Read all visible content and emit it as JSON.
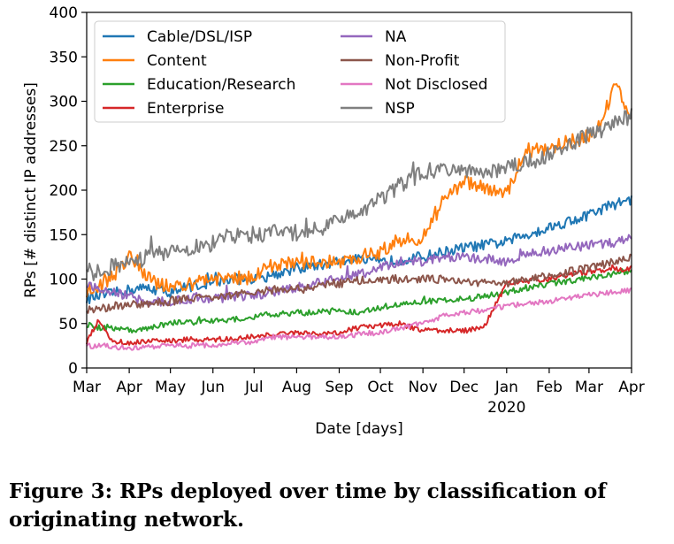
{
  "caption": "Figure 3: RPs deployed over time by classification of originating network.",
  "chart_data": {
    "type": "line",
    "xlabel": "Date [days]",
    "ylabel": "RPs [# distinct IP addresses]",
    "x_range": [
      "2019-03-01",
      "2020-04-01"
    ],
    "ylim": [
      0,
      400
    ],
    "y_ticks": [
      0,
      50,
      100,
      150,
      200,
      250,
      300,
      350,
      400
    ],
    "x_ticks": [
      {
        "date": "2019-03-01",
        "label": "Mar"
      },
      {
        "date": "2019-04-01",
        "label": "Apr"
      },
      {
        "date": "2019-05-01",
        "label": "May"
      },
      {
        "date": "2019-06-01",
        "label": "Jun"
      },
      {
        "date": "2019-07-01",
        "label": "Jul"
      },
      {
        "date": "2019-08-01",
        "label": "Aug"
      },
      {
        "date": "2019-09-01",
        "label": "Sep"
      },
      {
        "date": "2019-10-01",
        "label": "Oct"
      },
      {
        "date": "2019-11-01",
        "label": "Nov"
      },
      {
        "date": "2019-12-01",
        "label": "Dec"
      },
      {
        "date": "2020-01-01",
        "label": "Jan",
        "sublabel": "2020"
      },
      {
        "date": "2020-02-01",
        "label": "Feb"
      },
      {
        "date": "2020-03-01",
        "label": "Mar"
      },
      {
        "date": "2020-04-01",
        "label": "Apr"
      }
    ],
    "grid": false,
    "legend": {
      "position": "top-left",
      "columns": 2
    },
    "series": [
      {
        "name": "Cable/DSL/ISP",
        "color": "#1f77b4",
        "points": [
          [
            "2019-03-01",
            78
          ],
          [
            "2019-03-15",
            82
          ],
          [
            "2019-04-01",
            88
          ],
          [
            "2019-04-15",
            90
          ],
          [
            "2019-05-01",
            85
          ],
          [
            "2019-05-15",
            92
          ],
          [
            "2019-06-01",
            95
          ],
          [
            "2019-06-15",
            100
          ],
          [
            "2019-07-01",
            100
          ],
          [
            "2019-07-15",
            105
          ],
          [
            "2019-08-01",
            112
          ],
          [
            "2019-08-15",
            115
          ],
          [
            "2019-09-01",
            120
          ],
          [
            "2019-09-15",
            122
          ],
          [
            "2019-10-01",
            118
          ],
          [
            "2019-10-15",
            122
          ],
          [
            "2019-11-01",
            125
          ],
          [
            "2019-11-15",
            130
          ],
          [
            "2019-12-01",
            135
          ],
          [
            "2019-12-15",
            138
          ],
          [
            "2020-01-01",
            142
          ],
          [
            "2020-01-15",
            150
          ],
          [
            "2020-02-01",
            158
          ],
          [
            "2020-02-15",
            165
          ],
          [
            "2020-03-01",
            172
          ],
          [
            "2020-03-15",
            182
          ],
          [
            "2020-04-01",
            190
          ]
        ]
      },
      {
        "name": "Content",
        "color": "#ff7f0e",
        "points": [
          [
            "2019-03-01",
            85
          ],
          [
            "2019-03-15",
            95
          ],
          [
            "2019-04-01",
            125
          ],
          [
            "2019-04-15",
            100
          ],
          [
            "2019-05-01",
            90
          ],
          [
            "2019-05-15",
            95
          ],
          [
            "2019-06-01",
            100
          ],
          [
            "2019-06-15",
            100
          ],
          [
            "2019-07-01",
            105
          ],
          [
            "2019-07-15",
            115
          ],
          [
            "2019-08-01",
            120
          ],
          [
            "2019-08-15",
            118
          ],
          [
            "2019-09-01",
            120
          ],
          [
            "2019-09-15",
            125
          ],
          [
            "2019-10-01",
            130
          ],
          [
            "2019-10-15",
            145
          ],
          [
            "2019-11-01",
            145
          ],
          [
            "2019-11-15",
            185
          ],
          [
            "2019-12-01",
            210
          ],
          [
            "2019-12-15",
            205
          ],
          [
            "2020-01-01",
            195
          ],
          [
            "2020-01-15",
            245
          ],
          [
            "2020-02-01",
            245
          ],
          [
            "2020-02-15",
            255
          ],
          [
            "2020-03-01",
            260
          ],
          [
            "2020-03-10",
            275
          ],
          [
            "2020-03-20",
            320
          ],
          [
            "2020-04-01",
            285
          ]
        ]
      },
      {
        "name": "Education/Research",
        "color": "#2ca02c",
        "points": [
          [
            "2019-03-01",
            48
          ],
          [
            "2019-03-15",
            45
          ],
          [
            "2019-04-01",
            42
          ],
          [
            "2019-04-15",
            45
          ],
          [
            "2019-05-01",
            50
          ],
          [
            "2019-05-15",
            52
          ],
          [
            "2019-06-01",
            52
          ],
          [
            "2019-06-15",
            55
          ],
          [
            "2019-07-01",
            58
          ],
          [
            "2019-07-15",
            60
          ],
          [
            "2019-08-01",
            62
          ],
          [
            "2019-08-15",
            62
          ],
          [
            "2019-09-01",
            65
          ],
          [
            "2019-09-15",
            63
          ],
          [
            "2019-10-01",
            68
          ],
          [
            "2019-10-15",
            72
          ],
          [
            "2019-11-01",
            75
          ],
          [
            "2019-11-15",
            75
          ],
          [
            "2019-12-01",
            78
          ],
          [
            "2019-12-15",
            80
          ],
          [
            "2020-01-01",
            85
          ],
          [
            "2020-01-15",
            90
          ],
          [
            "2020-02-01",
            95
          ],
          [
            "2020-02-15",
            98
          ],
          [
            "2020-03-01",
            102
          ],
          [
            "2020-03-15",
            105
          ],
          [
            "2020-04-01",
            110
          ]
        ]
      },
      {
        "name": "Enterprise",
        "color": "#d62728",
        "points": [
          [
            "2019-03-01",
            28
          ],
          [
            "2019-03-10",
            55
          ],
          [
            "2019-03-20",
            30
          ],
          [
            "2019-04-01",
            28
          ],
          [
            "2019-04-15",
            30
          ],
          [
            "2019-05-01",
            30
          ],
          [
            "2019-05-15",
            32
          ],
          [
            "2019-06-01",
            32
          ],
          [
            "2019-06-15",
            33
          ],
          [
            "2019-07-01",
            35
          ],
          [
            "2019-07-15",
            38
          ],
          [
            "2019-08-01",
            40
          ],
          [
            "2019-08-15",
            38
          ],
          [
            "2019-09-01",
            40
          ],
          [
            "2019-09-15",
            45
          ],
          [
            "2019-10-01",
            48
          ],
          [
            "2019-10-15",
            50
          ],
          [
            "2019-11-01",
            42
          ],
          [
            "2019-11-15",
            42
          ],
          [
            "2019-12-01",
            42
          ],
          [
            "2019-12-15",
            45
          ],
          [
            "2020-01-01",
            95
          ],
          [
            "2020-01-15",
            98
          ],
          [
            "2020-02-01",
            100
          ],
          [
            "2020-02-15",
            105
          ],
          [
            "2020-03-01",
            108
          ],
          [
            "2020-03-15",
            110
          ],
          [
            "2020-04-01",
            112
          ]
        ]
      },
      {
        "name": "NA",
        "color": "#9467bd",
        "points": [
          [
            "2019-03-01",
            92
          ],
          [
            "2019-03-15",
            88
          ],
          [
            "2019-04-01",
            80
          ],
          [
            "2019-04-15",
            75
          ],
          [
            "2019-05-01",
            75
          ],
          [
            "2019-05-15",
            78
          ],
          [
            "2019-06-01",
            78
          ],
          [
            "2019-06-15",
            80
          ],
          [
            "2019-07-01",
            82
          ],
          [
            "2019-07-15",
            85
          ],
          [
            "2019-08-01",
            90
          ],
          [
            "2019-08-15",
            95
          ],
          [
            "2019-09-01",
            100
          ],
          [
            "2019-09-15",
            105
          ],
          [
            "2019-10-01",
            112
          ],
          [
            "2019-10-15",
            120
          ],
          [
            "2019-11-01",
            120
          ],
          [
            "2019-11-15",
            125
          ],
          [
            "2019-12-01",
            125
          ],
          [
            "2019-12-15",
            122
          ],
          [
            "2020-01-01",
            120
          ],
          [
            "2020-01-15",
            128
          ],
          [
            "2020-02-01",
            132
          ],
          [
            "2020-02-15",
            135
          ],
          [
            "2020-03-01",
            138
          ],
          [
            "2020-03-15",
            140
          ],
          [
            "2020-04-01",
            145
          ]
        ]
      },
      {
        "name": "Non-Profit",
        "color": "#8c564b",
        "points": [
          [
            "2019-03-01",
            65
          ],
          [
            "2019-03-15",
            68
          ],
          [
            "2019-04-01",
            72
          ],
          [
            "2019-04-15",
            72
          ],
          [
            "2019-05-01",
            75
          ],
          [
            "2019-05-15",
            78
          ],
          [
            "2019-06-01",
            80
          ],
          [
            "2019-06-15",
            82
          ],
          [
            "2019-07-01",
            85
          ],
          [
            "2019-07-15",
            88
          ],
          [
            "2019-08-01",
            90
          ],
          [
            "2019-08-15",
            92
          ],
          [
            "2019-09-01",
            95
          ],
          [
            "2019-09-15",
            98
          ],
          [
            "2019-10-01",
            100
          ],
          [
            "2019-10-15",
            100
          ],
          [
            "2019-11-01",
            100
          ],
          [
            "2019-11-15",
            100
          ],
          [
            "2019-12-01",
            98
          ],
          [
            "2019-12-15",
            95
          ],
          [
            "2020-01-01",
            95
          ],
          [
            "2020-01-15",
            100
          ],
          [
            "2020-02-01",
            105
          ],
          [
            "2020-02-15",
            108
          ],
          [
            "2020-03-01",
            112
          ],
          [
            "2020-03-15",
            118
          ],
          [
            "2020-04-01",
            125
          ]
        ]
      },
      {
        "name": "Not Disclosed",
        "color": "#e377c2",
        "points": [
          [
            "2019-03-01",
            25
          ],
          [
            "2019-03-15",
            25
          ],
          [
            "2019-04-01",
            22
          ],
          [
            "2019-04-15",
            24
          ],
          [
            "2019-05-01",
            25
          ],
          [
            "2019-05-15",
            25
          ],
          [
            "2019-06-01",
            26
          ],
          [
            "2019-06-15",
            28
          ],
          [
            "2019-07-01",
            30
          ],
          [
            "2019-07-15",
            35
          ],
          [
            "2019-08-01",
            35
          ],
          [
            "2019-08-15",
            35
          ],
          [
            "2019-09-01",
            35
          ],
          [
            "2019-09-15",
            38
          ],
          [
            "2019-10-01",
            40
          ],
          [
            "2019-10-15",
            45
          ],
          [
            "2019-11-01",
            50
          ],
          [
            "2019-11-15",
            58
          ],
          [
            "2019-12-01",
            62
          ],
          [
            "2019-12-15",
            65
          ],
          [
            "2020-01-01",
            70
          ],
          [
            "2020-01-15",
            72
          ],
          [
            "2020-02-01",
            75
          ],
          [
            "2020-02-15",
            78
          ],
          [
            "2020-03-01",
            82
          ],
          [
            "2020-03-15",
            85
          ],
          [
            "2020-04-01",
            88
          ]
        ]
      },
      {
        "name": "NSP",
        "color": "#7f7f7f",
        "points": [
          [
            "2019-03-01",
            110
          ],
          [
            "2019-03-15",
            112
          ],
          [
            "2019-04-01",
            118
          ],
          [
            "2019-04-15",
            125
          ],
          [
            "2019-05-01",
            132
          ],
          [
            "2019-05-15",
            135
          ],
          [
            "2019-06-01",
            140
          ],
          [
            "2019-06-15",
            148
          ],
          [
            "2019-07-01",
            150
          ],
          [
            "2019-07-15",
            152
          ],
          [
            "2019-08-01",
            150
          ],
          [
            "2019-08-15",
            155
          ],
          [
            "2019-09-01",
            165
          ],
          [
            "2019-09-15",
            175
          ],
          [
            "2019-10-01",
            190
          ],
          [
            "2019-10-15",
            205
          ],
          [
            "2019-11-01",
            220
          ],
          [
            "2019-11-15",
            225
          ],
          [
            "2019-12-01",
            220
          ],
          [
            "2019-12-15",
            218
          ],
          [
            "2020-01-01",
            225
          ],
          [
            "2020-01-15",
            230
          ],
          [
            "2020-02-01",
            240
          ],
          [
            "2020-02-15",
            250
          ],
          [
            "2020-03-01",
            262
          ],
          [
            "2020-03-15",
            270
          ],
          [
            "2020-04-01",
            285
          ]
        ]
      }
    ]
  }
}
